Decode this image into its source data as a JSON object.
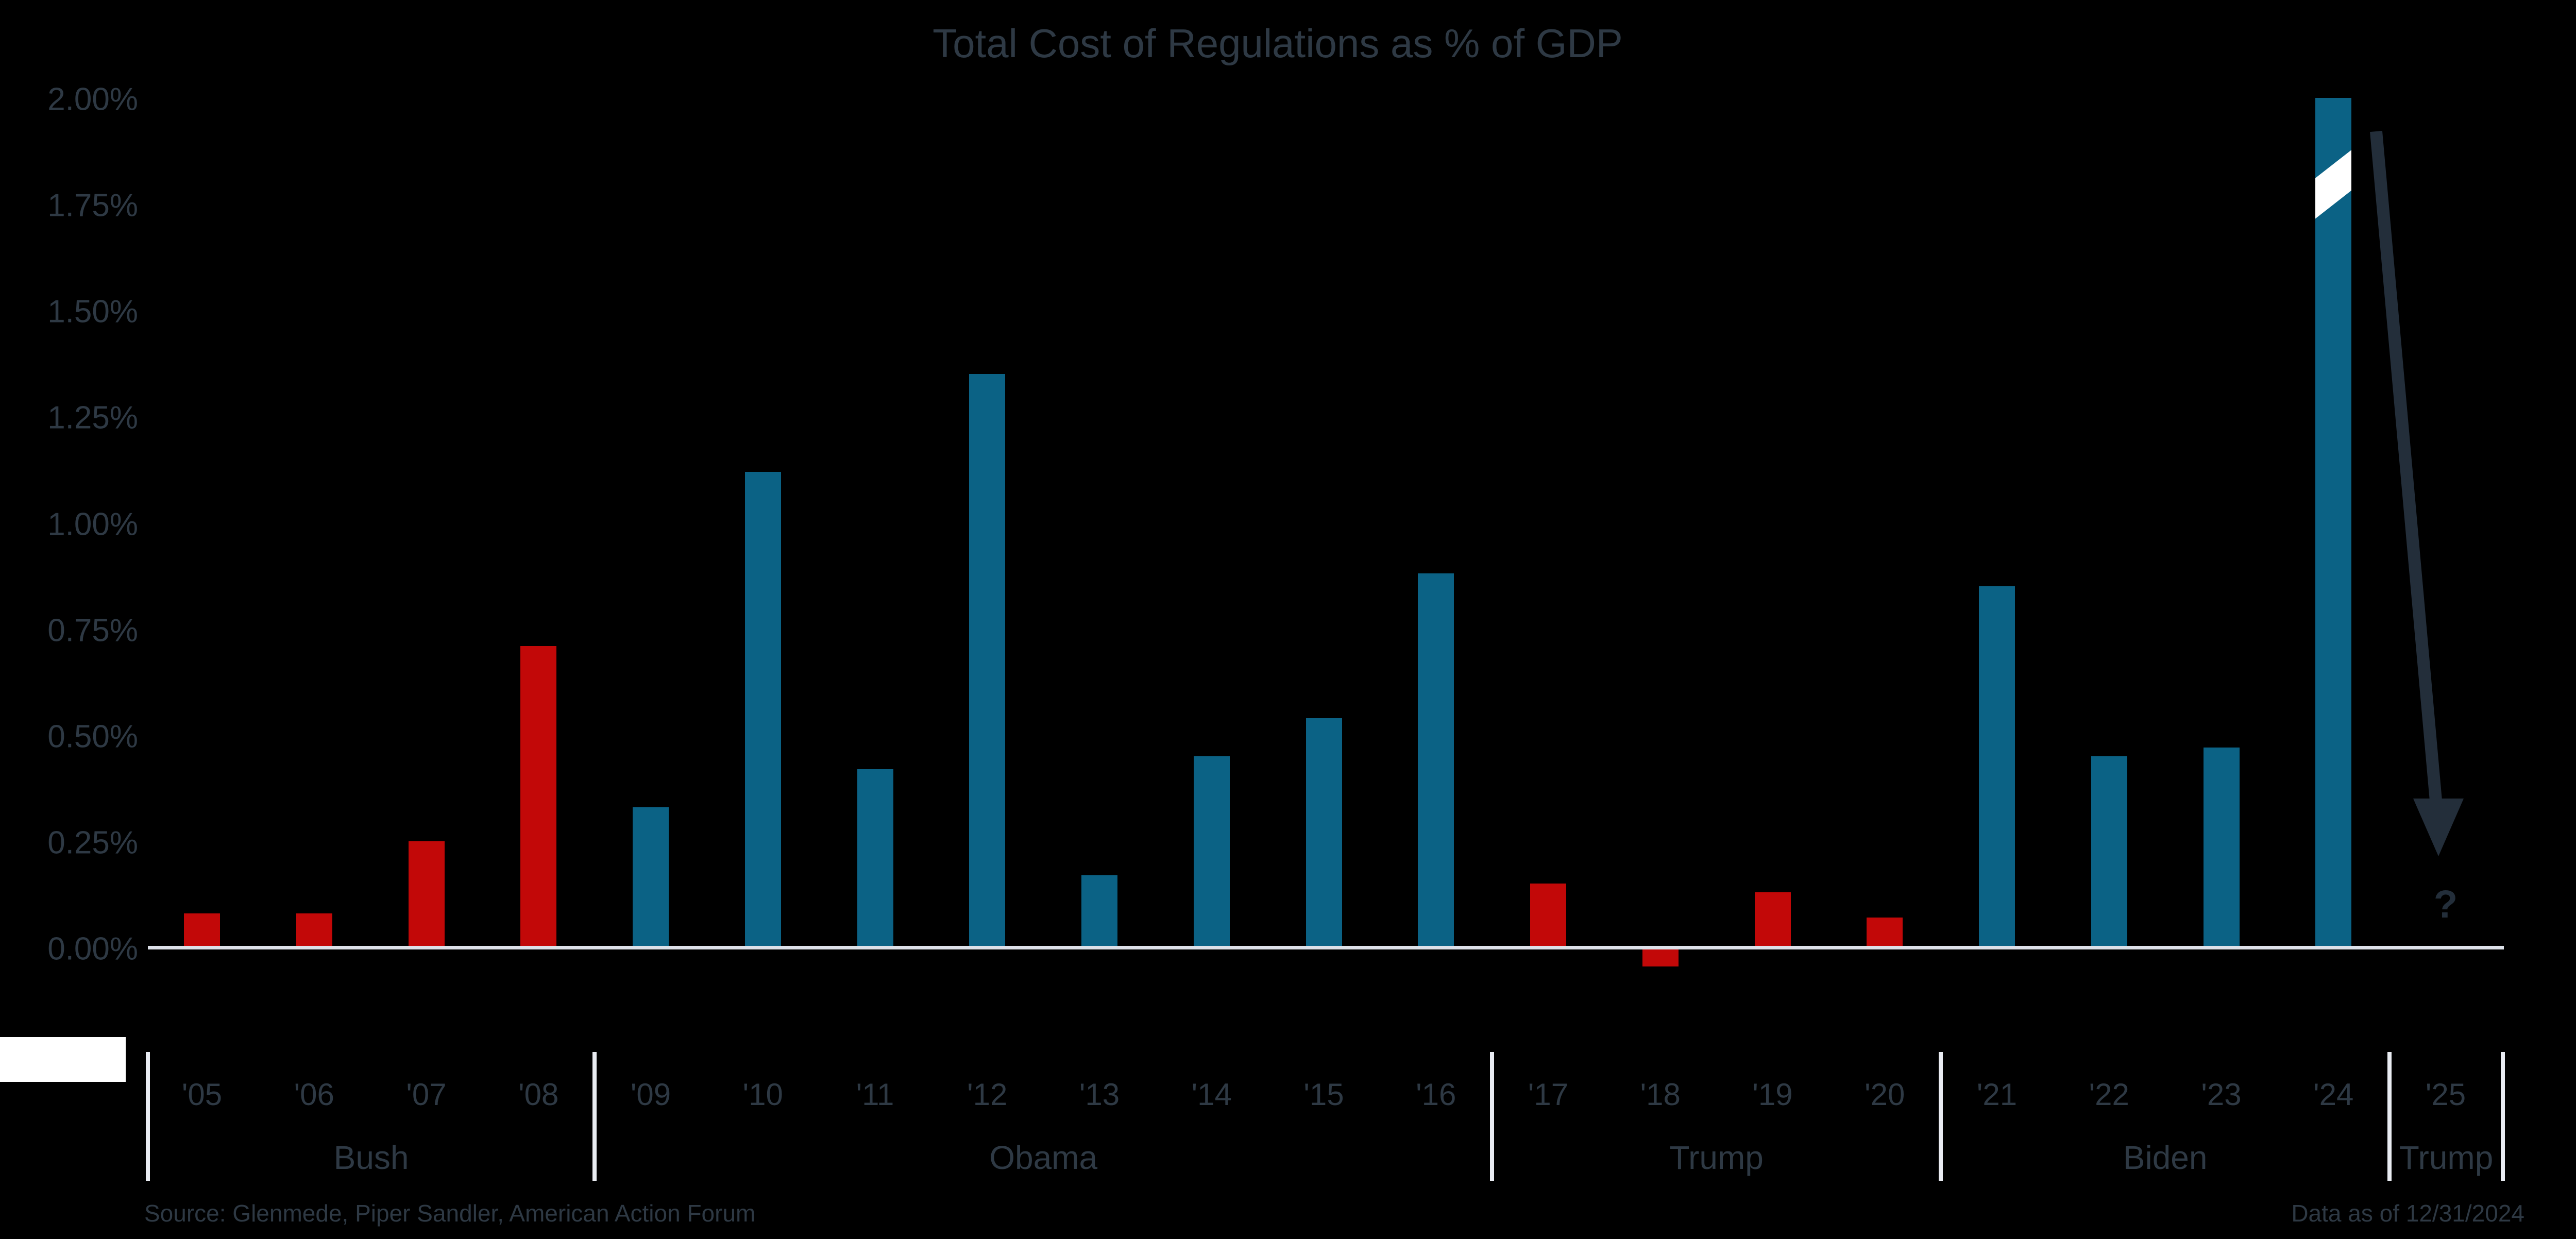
{
  "title": "Total Cost of Regulations as % of GDP",
  "colors": {
    "background": "#000000",
    "ink_text": "#2e3944",
    "republican_red": "#c20808",
    "democrat_blue": "#0b6285",
    "axis_line": "#dde1e9",
    "separator_line": "#e9ecf2",
    "arrow_annotation": "#232e3a",
    "bar_break_slash": "#ffffff",
    "logo_block": "#ffffff"
  },
  "chart_data": {
    "type": "bar",
    "title": "Total Cost of Regulations as % of GDP",
    "xlabel": "",
    "ylabel": "Total cost of regulations as % of GDP",
    "ylim": [
      -0.1,
      2.0
    ],
    "grid": false,
    "legend": "none",
    "y_ticks": [
      {
        "value": 2.0,
        "label": "2.00%"
      },
      {
        "value": 1.75,
        "label": "1.75%"
      },
      {
        "value": 1.5,
        "label": "1.50%"
      },
      {
        "value": 1.25,
        "label": "1.25%"
      },
      {
        "value": 1.0,
        "label": "1.00%"
      },
      {
        "value": 0.75,
        "label": "0.75%"
      },
      {
        "value": 0.5,
        "label": "0.50%"
      },
      {
        "value": 0.25,
        "label": "0.25%"
      },
      {
        "value": 0.0,
        "label": "0.00%"
      }
    ],
    "categories": [
      "'05",
      "'06",
      "'07",
      "'08",
      "'09",
      "'10",
      "'11",
      "'12",
      "'13",
      "'14",
      "'15",
      "'16",
      "'17",
      "'18",
      "'19",
      "'20",
      "'21",
      "'22",
      "'23",
      "'24",
      "'25"
    ],
    "bars": [
      {
        "year": "'05",
        "value": 0.08,
        "party": "rep"
      },
      {
        "year": "'06",
        "value": 0.08,
        "party": "rep"
      },
      {
        "year": "'07",
        "value": 0.25,
        "party": "rep"
      },
      {
        "year": "'08",
        "value": 0.71,
        "party": "rep"
      },
      {
        "year": "'09",
        "value": 0.33,
        "party": "dem"
      },
      {
        "year": "'10",
        "value": 1.12,
        "party": "dem"
      },
      {
        "year": "'11",
        "value": 0.42,
        "party": "dem"
      },
      {
        "year": "'12",
        "value": 1.35,
        "party": "dem"
      },
      {
        "year": "'13",
        "value": 0.17,
        "party": "dem"
      },
      {
        "year": "'14",
        "value": 0.45,
        "party": "dem"
      },
      {
        "year": "'15",
        "value": 0.54,
        "party": "dem"
      },
      {
        "year": "'16",
        "value": 0.88,
        "party": "dem"
      },
      {
        "year": "'17",
        "value": 0.15,
        "party": "rep"
      },
      {
        "year": "'18",
        "value": -0.04,
        "party": "rep"
      },
      {
        "year": "'19",
        "value": 0.13,
        "party": "rep"
      },
      {
        "year": "'20",
        "value": 0.07,
        "party": "rep"
      },
      {
        "year": "'21",
        "value": 0.85,
        "party": "dem"
      },
      {
        "year": "'22",
        "value": 0.45,
        "party": "dem"
      },
      {
        "year": "'23",
        "value": 0.47,
        "party": "dem"
      },
      {
        "year": "'24",
        "value": 2.0,
        "party": "dem",
        "broken": true
      },
      {
        "year": "'25",
        "value": null,
        "party": "rep",
        "unknown": true
      }
    ],
    "groups": [
      {
        "label": "Bush",
        "start": 0,
        "end": 3
      },
      {
        "label": "Obama",
        "start": 4,
        "end": 11
      },
      {
        "label": "Trump",
        "start": 12,
        "end": 15
      },
      {
        "label": "Biden",
        "start": 16,
        "end": 19
      },
      {
        "label": "Trump",
        "start": 20,
        "end": 20
      }
    ],
    "annotations": {
      "bar_break_slash_year": "'24",
      "arrow_from_year": "'24",
      "arrow_to_year": "'25",
      "question_mark": "?"
    }
  },
  "footer": {
    "source": "Source: Glenmede, Piper Sandler, American Action Forum",
    "data_as_of": "Data as of 12/31/2024"
  }
}
